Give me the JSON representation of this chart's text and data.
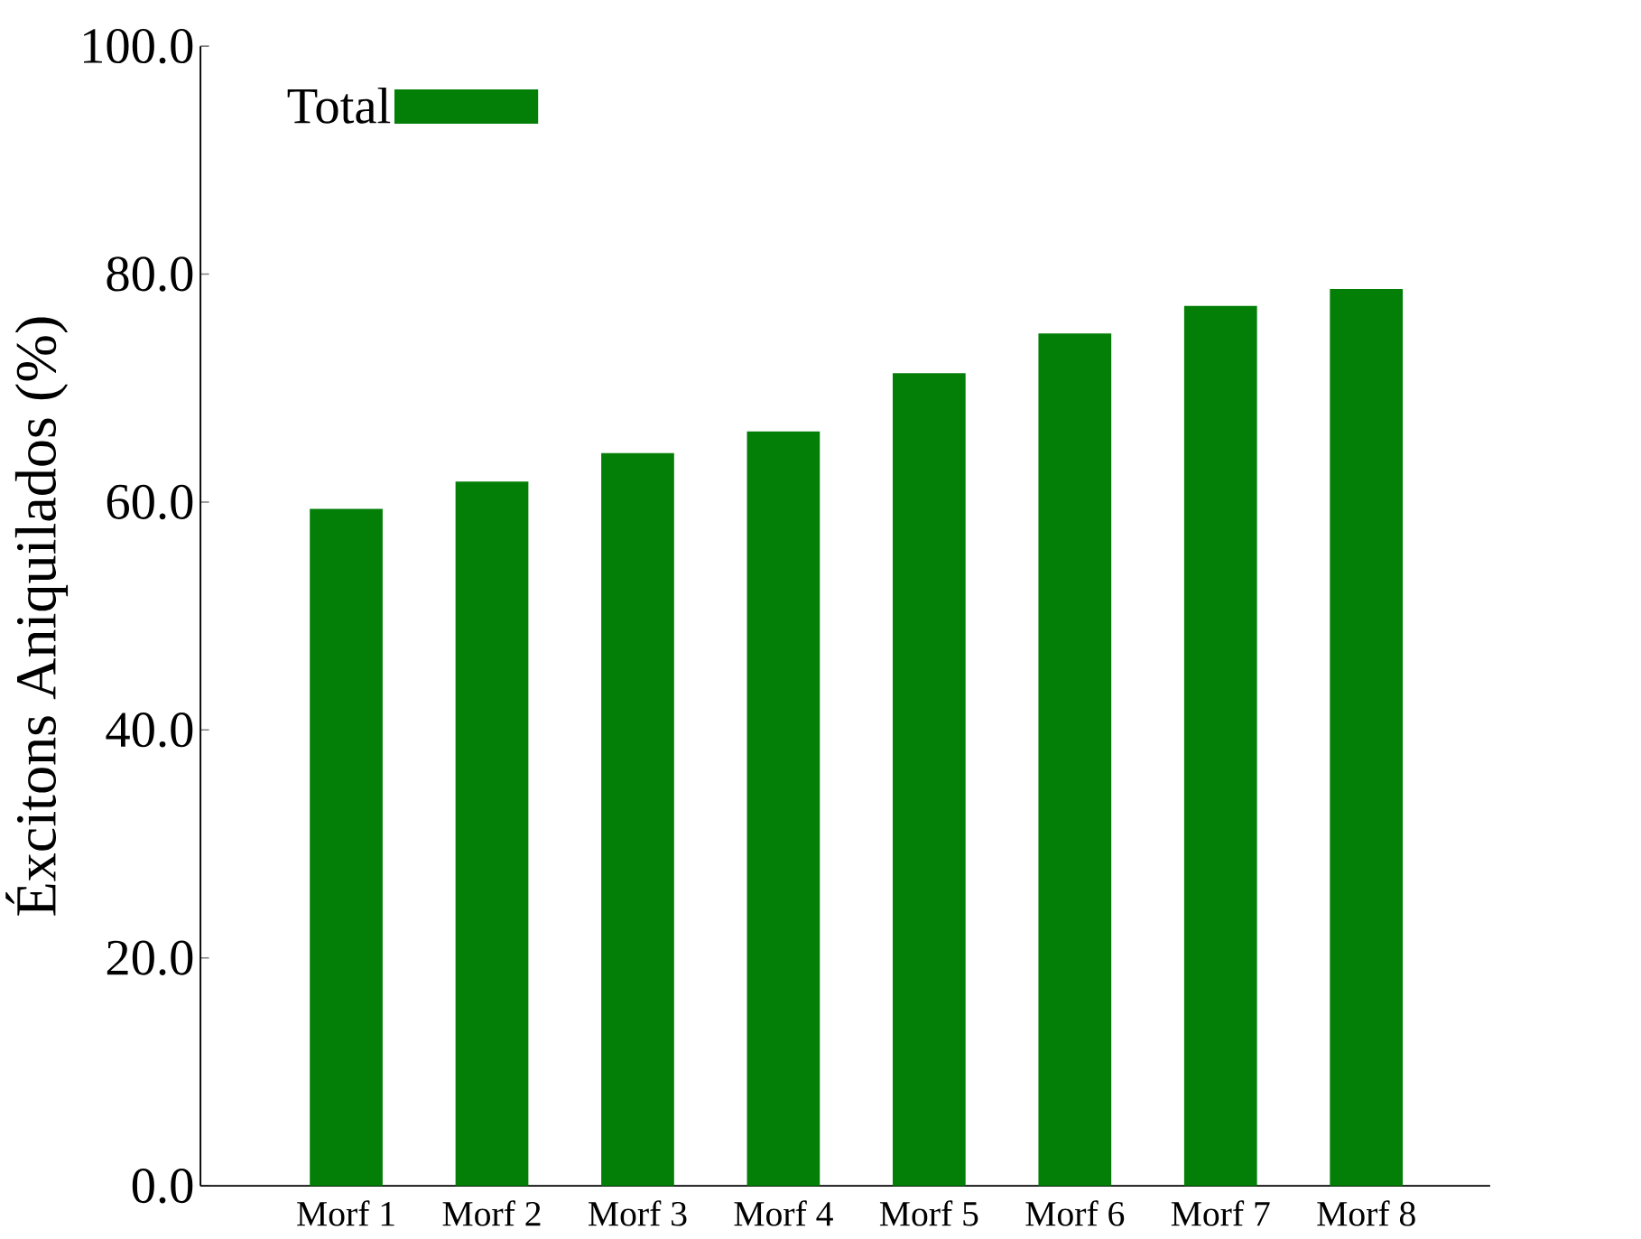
{
  "chart_data": {
    "type": "bar",
    "ylabel": "Éxcitons Aniquilados (%)",
    "categories": [
      "Morf 1",
      "Morf 2",
      "Morf 3",
      "Morf 4",
      "Morf 5",
      "Morf 6",
      "Morf 7",
      "Morf 8"
    ],
    "series": [
      {
        "name": "Total",
        "color": "#037f07",
        "values": [
          59.4,
          61.8,
          64.3,
          66.2,
          71.3,
          74.8,
          77.2,
          78.7
        ]
      }
    ],
    "ylim": [
      0,
      100
    ],
    "yticks": [
      {
        "value": 0,
        "label": "0.0"
      },
      {
        "value": 20,
        "label": "20.0"
      },
      {
        "value": 40,
        "label": "40.0"
      },
      {
        "value": 60,
        "label": "60.0"
      },
      {
        "value": 80,
        "label": "80.0"
      },
      {
        "value": 100,
        "label": "100.0"
      }
    ],
    "legend": "top left"
  }
}
